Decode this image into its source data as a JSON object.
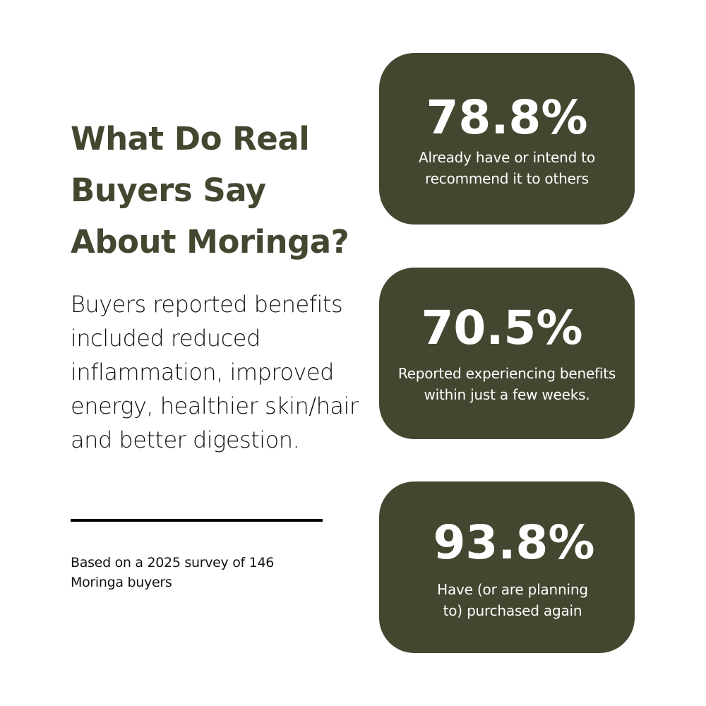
{
  "title": "What Do Real Buyers Say About Moringa?",
  "body": "Buyers reported benefits included reduced inflammation, improved energy, healthier skin/hair and better digestion.",
  "note": "Based on a 2025 survey of 146 Moringa buyers",
  "colors": {
    "accent": "#434730",
    "text": "#111111",
    "card_text": "#ffffff"
  },
  "stats": [
    {
      "value": "78.8%",
      "label": "Already have or intend to recommend it to others"
    },
    {
      "value": "70.5%",
      "label": "Reported experiencing benefits within just a few weeks."
    },
    {
      "value": "93.8%",
      "label": "Have (or are planning to) purchased again"
    }
  ]
}
